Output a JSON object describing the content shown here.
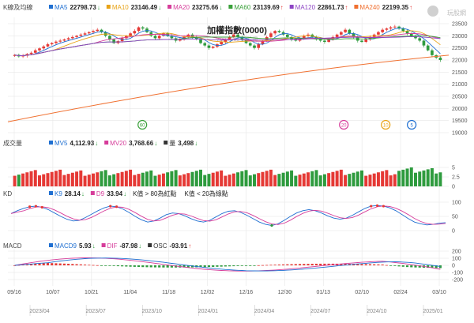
{
  "title": "加權指數(0000)",
  "watermark": "WantGoo 玩股網",
  "logo_text": "玩股網",
  "colors": {
    "up": "#e53935",
    "down": "#2e9b3e",
    "grid": "#e6e6e6",
    "ma5": "#1f6fd1",
    "ma10": "#e8a317",
    "ma20": "#d63c9a",
    "ma60": "#3aa03a",
    "ma120": "#8d44c4",
    "ma240": "#f07030"
  },
  "price_panel": {
    "label": "K線及均線",
    "legend": [
      {
        "name": "MA5",
        "value": "22798.73",
        "arrow": "↓",
        "color": "#1f6fd1"
      },
      {
        "name": "MA10",
        "value": "23146.49",
        "arrow": "↓",
        "color": "#e8a317"
      },
      {
        "name": "MA20",
        "value": "23275.66",
        "arrow": "↓",
        "color": "#d63c9a"
      },
      {
        "name": "MA60",
        "value": "23139.69",
        "arrow": "↑",
        "color": "#3aa03a"
      },
      {
        "name": "MA120",
        "value": "22861.73",
        "arrow": "↑",
        "color": "#8d44c4"
      },
      {
        "name": "MA240",
        "value": "22199.35",
        "arrow": "↑",
        "color": "#f07030"
      }
    ],
    "y_ticks": [
      "23500",
      "23000",
      "22500",
      "22000",
      "21500",
      "21000",
      "20500",
      "20000",
      "19500",
      "19000"
    ],
    "markers": [
      {
        "text": "60",
        "color": "#3aa03a",
        "pos": 0.305
      },
      {
        "text": "20",
        "color": "#d63c9a",
        "pos": 0.762
      },
      {
        "text": "10",
        "color": "#e8a317",
        "pos": 0.857
      },
      {
        "text": "5",
        "color": "#1f6fd1",
        "pos": 0.916
      }
    ]
  },
  "volume_panel": {
    "label": "成交量",
    "legend": [
      {
        "name": "MV5",
        "value": "4,112.93",
        "arrow": "↓",
        "color": "#1f6fd1"
      },
      {
        "name": "MV20",
        "value": "3,768.66",
        "arrow": "↓",
        "color": "#d63c9a"
      },
      {
        "name": "量",
        "value": "3,498",
        "arrow": "↓",
        "color": "#333333"
      }
    ],
    "y_ticks": [
      "5",
      "2.5",
      "0"
    ]
  },
  "kd_panel": {
    "label": "KD",
    "legend": [
      {
        "name": "K9",
        "value": "28.14",
        "arrow": "↓",
        "color": "#1f6fd1"
      },
      {
        "name": "D9",
        "value": "33.94",
        "arrow": "↓",
        "color": "#d63c9a"
      }
    ],
    "notes": [
      "K值 > 80為紅點",
      "K值 < 20為綠點"
    ],
    "y_ticks": [
      "100",
      "50",
      "0"
    ]
  },
  "macd_panel": {
    "label": "MACD",
    "legend": [
      {
        "name": "MACD9",
        "value": "5.93",
        "arrow": "↓",
        "color": "#1f6fd1"
      },
      {
        "name": "DIF",
        "value": "-87.98",
        "arrow": "↓",
        "color": "#d63c9a"
      },
      {
        "name": "OSC",
        "value": "-93.91",
        "arrow": "↑",
        "color": "#333333"
      }
    ],
    "y_ticks": [
      "200",
      "100",
      "0",
      "-100",
      "-200"
    ]
  },
  "x_axis": {
    "dates": [
      "09/16",
      "10/07",
      "10/21",
      "11/04",
      "11/18",
      "12/02",
      "12/16",
      "12/30",
      "01/13",
      "02/10",
      "02/24",
      "03/10"
    ],
    "months": [
      "2023/04",
      "2023/07",
      "2023/10",
      "2024/01",
      "2024/04",
      "2024/07",
      "2024/10",
      "2025/01"
    ]
  },
  "chart_data": {
    "type": "candlestick",
    "title": "加權指數(0000)",
    "ylim": [
      19000,
      23500
    ],
    "close": [
      22210,
      22150,
      22180,
      22250,
      22300,
      22400,
      22480,
      22560,
      22650,
      22700,
      22760,
      22800,
      22850,
      22900,
      22950,
      23000,
      23050,
      23100,
      23150,
      23200,
      23250,
      23150,
      23000,
      22850,
      22700,
      22780,
      22900,
      23000,
      23100,
      23200,
      23350,
      23300,
      23150,
      23000,
      22900,
      23000,
      23100,
      23000,
      22900,
      22800,
      22850,
      22950,
      23050,
      22950,
      22850,
      22700,
      22600,
      22500,
      22550,
      22650,
      22750,
      22850,
      22950,
      23050,
      22950,
      22850,
      22700,
      22600,
      22500,
      22650,
      22800,
      22950,
      23100,
      23200,
      23150,
      23050,
      22950,
      22850,
      22800,
      22900,
      23000,
      23050,
      22950,
      22850,
      22800,
      22750,
      22850,
      22950,
      23050,
      23150,
      23250,
      23100,
      22950,
      22800,
      22750,
      22850,
      22950,
      23050,
      23150,
      23250,
      23300,
      23350,
      23380,
      23300,
      23200,
      23100,
      23000,
      22900,
      22800,
      22600,
      22400,
      22200,
      22100,
      22000
    ],
    "series_ma": [
      {
        "name": "MA5",
        "last": 22798.73
      },
      {
        "name": "MA10",
        "last": 23146.49
      },
      {
        "name": "MA20",
        "last": 23275.66
      },
      {
        "name": "MA60",
        "last": 23139.69
      },
      {
        "name": "MA120",
        "last": 22861.73
      },
      {
        "name": "MA240",
        "last": 22199.35
      }
    ],
    "volume": {
      "MV5": 4112.93,
      "MV20": 3768.66,
      "last": 3498,
      "ylim": [
        0,
        5
      ]
    },
    "kd": {
      "K9": 28.14,
      "D9": 33.94,
      "ylim": [
        0,
        100
      ],
      "k": [
        60,
        70,
        78,
        84,
        86,
        82,
        74,
        62,
        50,
        40,
        34,
        36,
        46,
        58,
        70,
        80,
        86,
        84,
        76,
        64,
        50,
        38,
        30,
        34,
        44,
        56,
        62,
        60,
        52,
        42,
        34,
        30,
        36,
        48,
        60,
        68,
        70,
        64,
        54,
        42,
        30,
        22,
        18,
        24,
        36,
        50,
        62,
        70,
        74,
        70,
        62,
        52,
        44,
        40,
        44,
        54,
        66,
        78,
        86,
        88,
        86,
        80,
        70,
        56,
        42,
        30,
        24,
        20,
        22,
        26,
        28
      ]
    },
    "macd": {
      "MACD9": 5.93,
      "DIF": -87.98,
      "OSC": -93.91,
      "ylim": [
        -200,
        200
      ]
    }
  }
}
